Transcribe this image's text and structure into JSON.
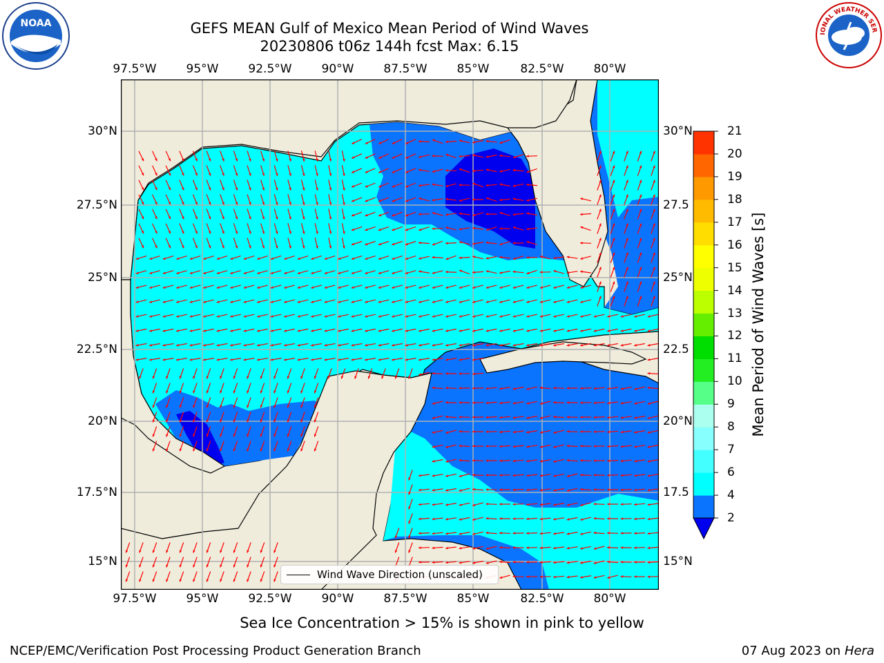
{
  "title": {
    "line1": "GEFS MEAN Gulf of Mexico Mean Period of Wind Waves",
    "line2": "20230806 t06z 144h fcst   Max: 6.15"
  },
  "axes": {
    "lon_ticks": [
      "97.5°W",
      "95°W",
      "92.5°W",
      "90°W",
      "87.5°W",
      "85°W",
      "82.5°W",
      "80°W"
    ],
    "lat_ticks_left": [
      "30°N",
      "27.5°N",
      "25°N",
      "22.5°N",
      "20°N",
      "17.5°N",
      "15°N"
    ],
    "lat_ticks_right": [
      "30°N",
      "27.5",
      "25°N",
      "22.5",
      "20°N",
      "17.5",
      "15°N"
    ]
  },
  "colorbar": {
    "label": "Mean Period of Wind Waves [s]",
    "levels": [
      "2",
      "4",
      "6",
      "7",
      "8",
      "9",
      "10",
      "11",
      "12",
      "13",
      "14",
      "15",
      "16",
      "17",
      "18",
      "19",
      "20",
      "21"
    ],
    "colors": [
      "#0a74ff",
      "#00ffff",
      "#44ffff",
      "#88ffff",
      "#aaffee",
      "#55ff88",
      "#22ee22",
      "#00dd00",
      "#66ee00",
      "#bbff00",
      "#eeff00",
      "#ffff00",
      "#ffdd00",
      "#ffbb00",
      "#ff9900",
      "#ff6600",
      "#ff3300"
    ],
    "extend_color": "#0000ee"
  },
  "legend": {
    "label": "Wind Wave Direction (unscaled)"
  },
  "note": "Sea Ice Concentration > 15% is shown in pink to yellow",
  "footer": {
    "left": "NCEP/EMC/Verification Post Processing Product Generation Branch",
    "right_date": "07 Aug 2023 on",
    "right_host": "Hera"
  },
  "logos": {
    "left": "NOAA",
    "right": "NATIONAL WEATHER SERVICE"
  },
  "colors": {
    "land": "#efecdc",
    "arrow": "#ff0000",
    "grid": "#b0b0b0"
  }
}
